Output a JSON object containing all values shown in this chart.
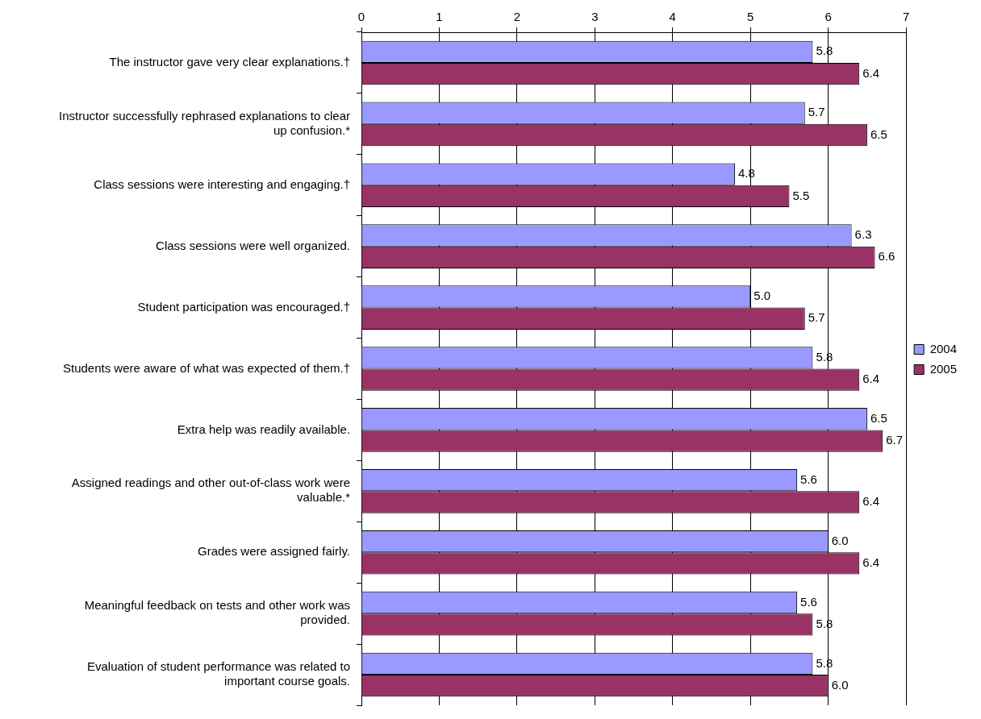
{
  "chart_data": {
    "type": "bar",
    "orientation": "horizontal",
    "categories": [
      "The instructor gave very clear explanations.†",
      "Instructor successfully rephrased explanations to clear up confusion.*",
      "Class sessions were interesting and engaging.†",
      "Class sessions were well organized.",
      "Student participation was encouraged.†",
      "Students were aware of what was expected of them.†",
      "Extra help was readily available.",
      "Assigned readings and other out-of-class work were valuable.*",
      "Grades were assigned fairly.",
      "Meaningful feedback on tests and other work was provided.",
      "Evaluation of student performance was related to important course goals."
    ],
    "series": [
      {
        "name": "2004",
        "color": "#9999ff",
        "values": [
          5.8,
          5.7,
          4.8,
          6.3,
          5.0,
          5.8,
          6.5,
          5.6,
          6.0,
          5.6,
          5.8
        ],
        "value_labels": [
          "5.8",
          "5.7",
          "4.8",
          "6.3",
          "5.0",
          "5.8",
          "6.5",
          "5.6",
          "6.0",
          "5.6",
          "5.8"
        ]
      },
      {
        "name": "2005",
        "color": "#993366",
        "values": [
          6.4,
          6.5,
          5.5,
          6.6,
          5.7,
          6.4,
          6.7,
          6.4,
          6.4,
          5.8,
          6.0
        ],
        "value_labels": [
          "6.4",
          "6.5",
          "5.5",
          "6.6",
          "5.7",
          "6.4",
          "6.7",
          "6.4",
          "6.4",
          "5.8",
          "6.0"
        ]
      }
    ],
    "xlim": [
      0,
      7
    ],
    "xticks": [
      0,
      1,
      2,
      3,
      4,
      5,
      6,
      7
    ],
    "grid": "x",
    "legend": "right"
  }
}
